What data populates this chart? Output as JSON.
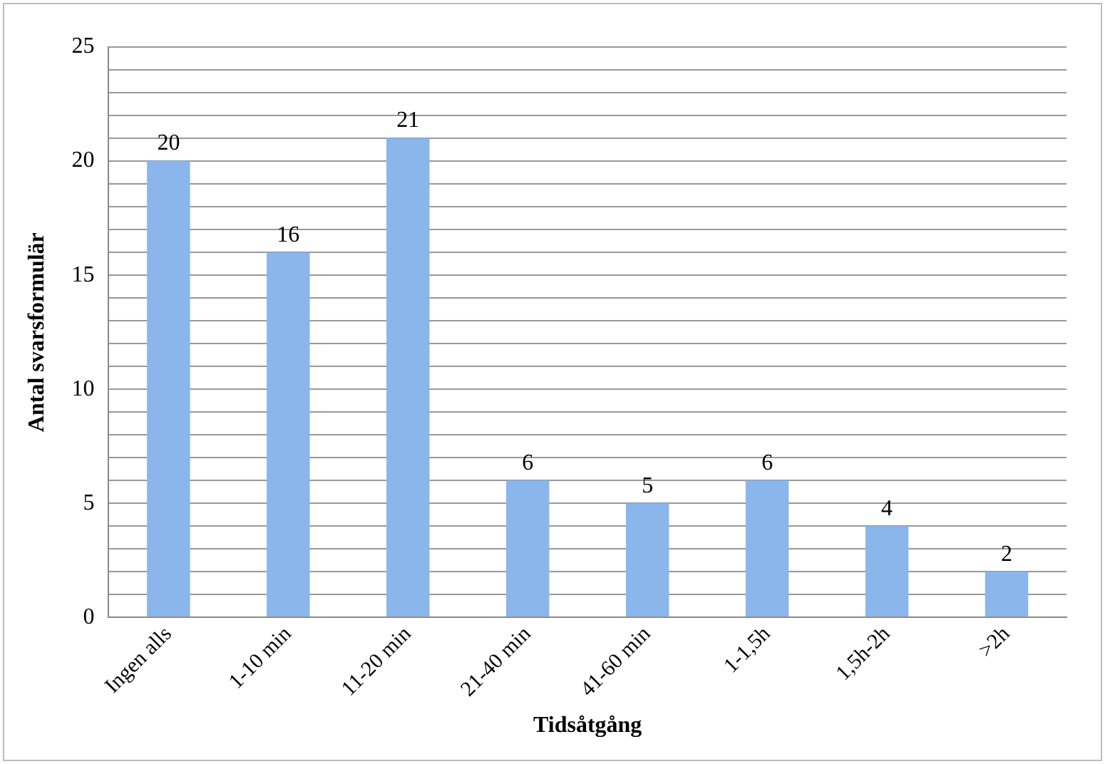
{
  "chart_data": {
    "type": "bar",
    "xlabel": "Tidsåtgång",
    "ylabel": "Antal svarsformulär",
    "categories": [
      "Ingen alls",
      "1-10 min",
      "11-20 min",
      "21-40 min",
      "41-60 min",
      "1-1,5h",
      "1,5h-2h",
      ">2h"
    ],
    "values": [
      20,
      16,
      21,
      6,
      5,
      6,
      4,
      2
    ],
    "color": "#8ab6ec",
    "ylim": [
      0,
      25
    ],
    "yticks": [
      0,
      {
        "value": 1,
        "label": null
      },
      {
        "value": 2,
        "label": null
      },
      {
        "value": 3,
        "label": null
      },
      {
        "value": 4,
        "label": null
      },
      5,
      {
        "value": 6,
        "label": null
      },
      {
        "value": 7,
        "label": null
      },
      {
        "value": 8,
        "label": null
      },
      {
        "value": 9,
        "label": null
      },
      10,
      {
        "value": 11,
        "label": null
      },
      {
        "value": 12,
        "label": null
      },
      {
        "value": 13,
        "label": null
      },
      {
        "value": 14,
        "label": null
      },
      15,
      {
        "value": 16,
        "label": null
      },
      {
        "value": 17,
        "label": null
      },
      {
        "value": 18,
        "label": null
      },
      {
        "value": 19,
        "label": null
      },
      20,
      {
        "value": 21,
        "label": null
      },
      {
        "value": 22,
        "label": null
      },
      {
        "value": 23,
        "label": null
      },
      {
        "value": 24,
        "label": null
      },
      25
    ],
    "grid": "y",
    "data_labels": true,
    "legend": false
  }
}
